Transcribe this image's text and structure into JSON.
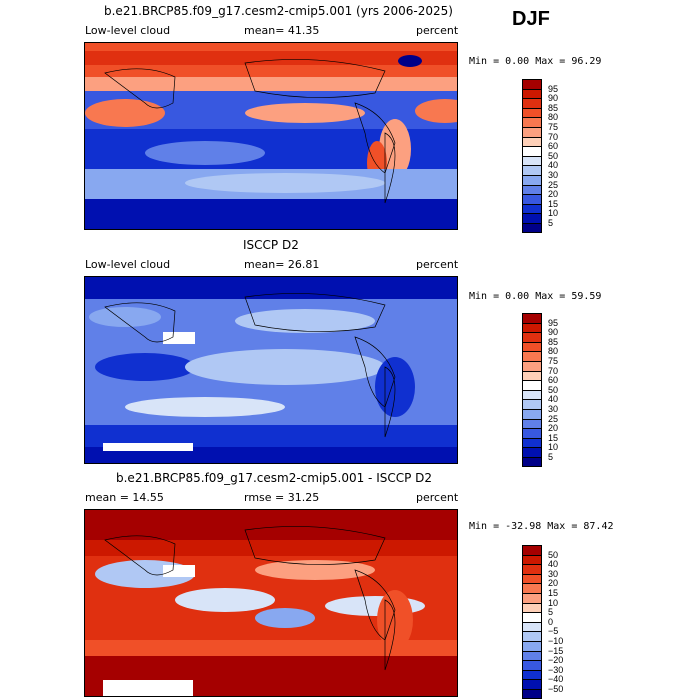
{
  "season": "DJF",
  "chart_data": [
    {
      "type": "heatmap",
      "title": "b.e21.BRCP85.f09_g17.cesm2-cmip5.001 (yrs 2006-2025)",
      "left_label": "Low-level cloud",
      "center_label": "mean=  41.35",
      "units": "percent",
      "min_max": "Min =   0.00 Max =  96.29",
      "colorbar_levels": [
        "95",
        "90",
        "85",
        "80",
        "75",
        "70",
        "60",
        "50",
        "40",
        "30",
        "25",
        "20",
        "15",
        "10",
        "5"
      ],
      "colors": [
        "#a50000",
        "#cc1800",
        "#e03010",
        "#f05028",
        "#f87850",
        "#fca080",
        "#fed0b8",
        "#ffffff",
        "#d8e4f8",
        "#b0c8f4",
        "#88a8f0",
        "#6080e8",
        "#3858e0",
        "#1030d0",
        "#0010b0",
        "#000088"
      ]
    },
    {
      "type": "heatmap",
      "title": "ISCCP D2",
      "left_label": "Low-level cloud",
      "center_label": "mean=  26.81",
      "units": "percent",
      "min_max": "Min =   0.00 Max =  59.59",
      "colorbar_levels": [
        "95",
        "90",
        "85",
        "80",
        "75",
        "70",
        "60",
        "50",
        "40",
        "30",
        "25",
        "20",
        "15",
        "10",
        "5"
      ],
      "colors": [
        "#a50000",
        "#cc1800",
        "#e03010",
        "#f05028",
        "#f87850",
        "#fca080",
        "#fed0b8",
        "#ffffff",
        "#d8e4f8",
        "#b0c8f4",
        "#88a8f0",
        "#6080e8",
        "#3858e0",
        "#1030d0",
        "#0010b0",
        "#000088"
      ]
    },
    {
      "type": "heatmap",
      "title": "b.e21.BRCP85.f09_g17.cesm2-cmip5.001 - ISCCP D2",
      "left_label": "mean =  14.55",
      "center_label": "rmse =  31.25",
      "units": "percent",
      "min_max": "Min = -32.98 Max =  87.42",
      "colorbar_levels": [
        "50",
        "40",
        "30",
        "20",
        "15",
        "10",
        "5",
        "0",
        "−5",
        "−10",
        "−15",
        "−20",
        "−30",
        "−40",
        "−50"
      ],
      "colors": [
        "#a50000",
        "#cc1800",
        "#e03010",
        "#f05028",
        "#f87850",
        "#fca080",
        "#fed0b8",
        "#ffffff",
        "#d8e4f8",
        "#b0c8f4",
        "#88a8f0",
        "#6080e8",
        "#3858e0",
        "#1030d0",
        "#0010b0",
        "#000088"
      ]
    }
  ]
}
